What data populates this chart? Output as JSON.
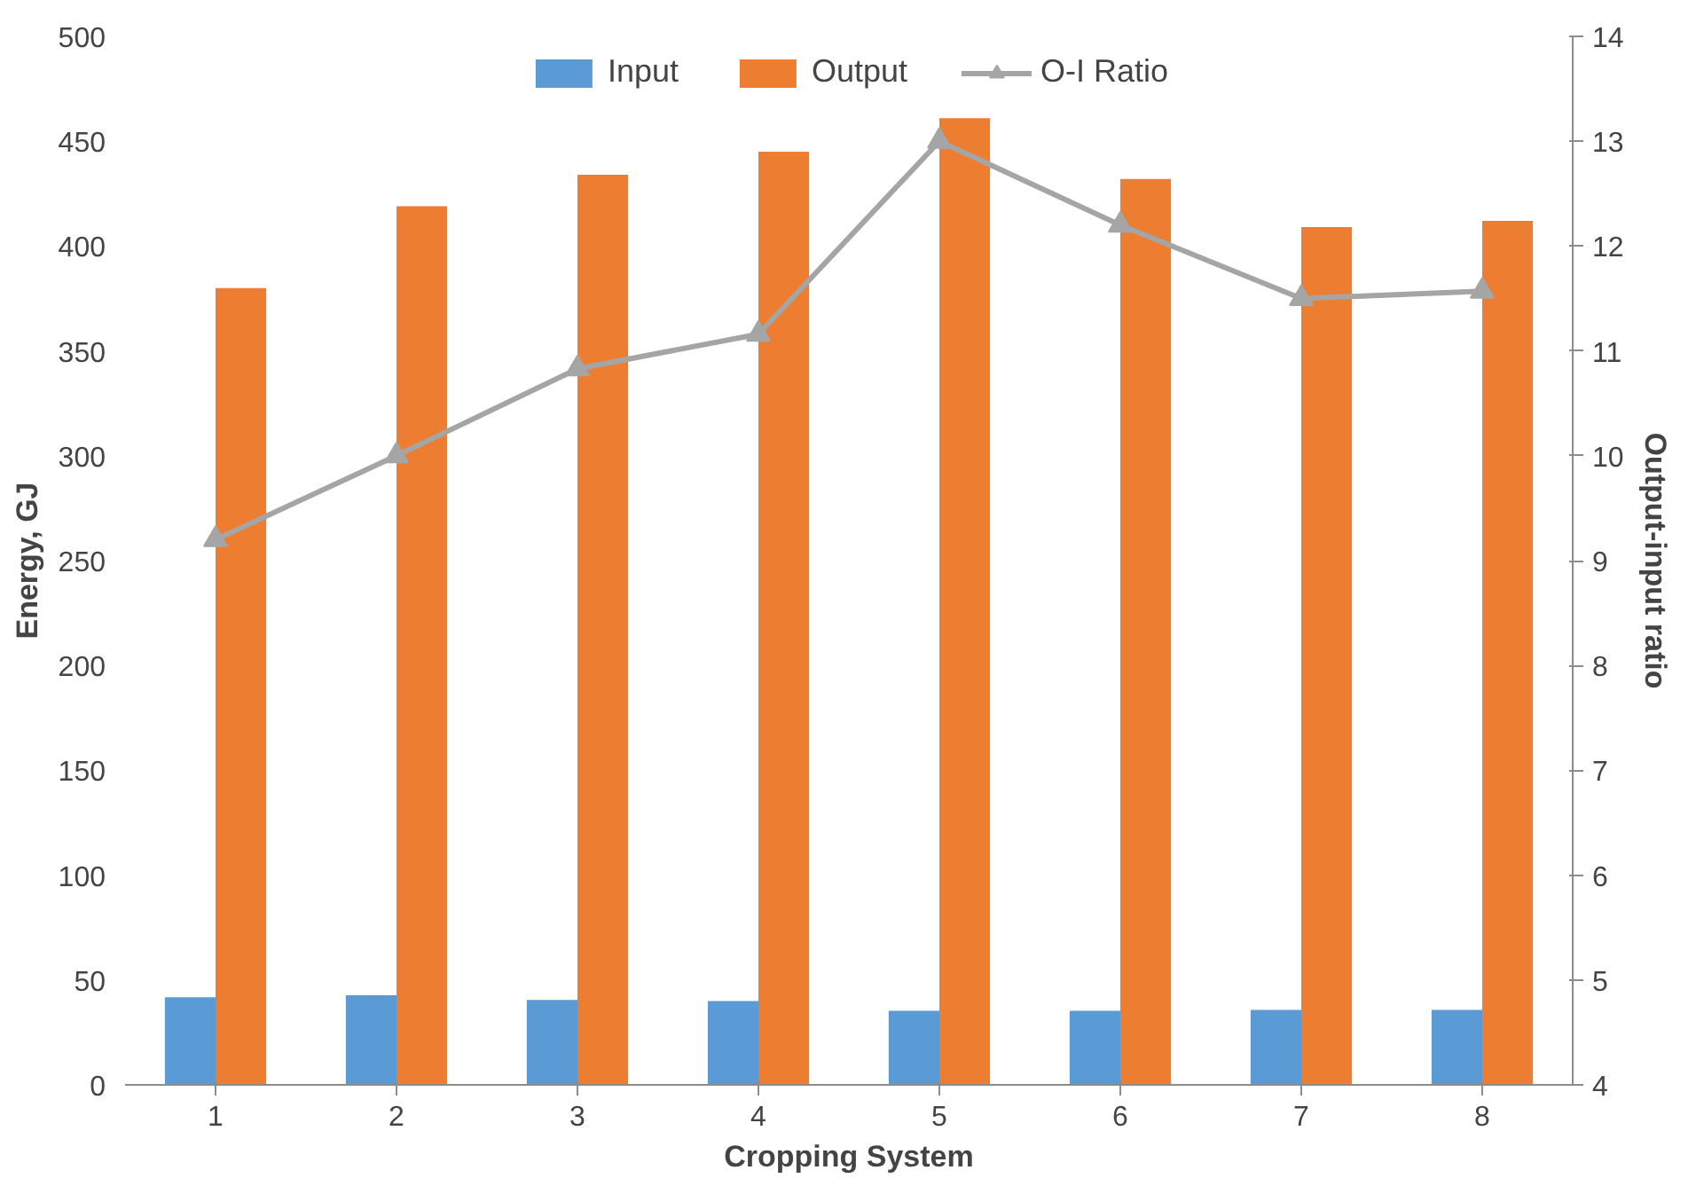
{
  "chart_data": {
    "type": "bar",
    "xlabel": "Cropping System",
    "ylabel": "Energy, GJ",
    "y2label": "Output-input ratio",
    "categories": [
      "1",
      "2",
      "3",
      "4",
      "5",
      "6",
      "7",
      "8"
    ],
    "series": [
      {
        "name": "Input",
        "color": "#5b9bd5",
        "values": [
          41.8,
          42.7,
          40.5,
          40,
          35.3,
          35.3,
          35.7,
          35.7
        ]
      },
      {
        "name": "Output",
        "color": "#ed7d31",
        "values": [
          380,
          419,
          434,
          445,
          461,
          432,
          409,
          412
        ]
      },
      {
        "name": "O-I Ratio",
        "type": "line",
        "axis": "y2",
        "color": "#a5a5a5",
        "marker": "triangle",
        "values": [
          9.2,
          10.0,
          10.83,
          11.16,
          13.0,
          12.2,
          11.5,
          11.57
        ]
      }
    ],
    "ylim": [
      0,
      500
    ],
    "yticks": [
      0,
      50,
      100,
      150,
      200,
      250,
      300,
      350,
      400,
      450,
      500
    ],
    "y2lim": [
      4,
      14
    ],
    "y2ticks": [
      4,
      5,
      6,
      7,
      8,
      9,
      10,
      11,
      12,
      13,
      14
    ],
    "grid": false,
    "legend": "top"
  }
}
